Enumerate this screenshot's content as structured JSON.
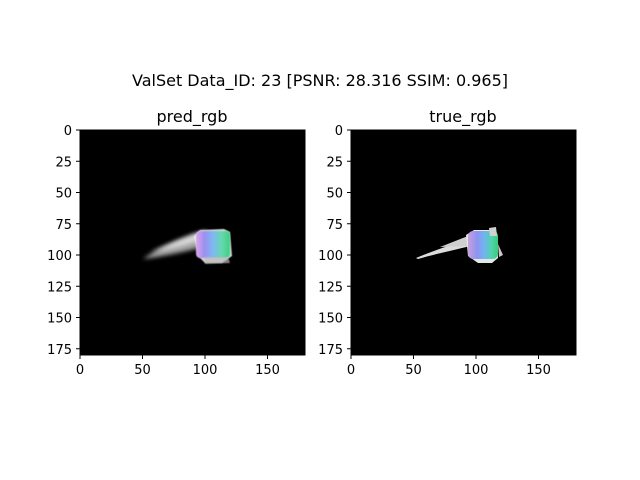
{
  "figure": {
    "suptitle": "ValSet  Data_ID: 23 [PSNR: 28.316 SSIM: 0.965]"
  },
  "colors": {
    "background": "#000000",
    "frame": "#000000",
    "figure_bg": "#ffffff"
  },
  "chart_data": [
    {
      "type": "image",
      "title": "pred_rgb",
      "xlim": [
        0,
        180
      ],
      "ylim": [
        180,
        0
      ],
      "xticks": [
        0,
        50,
        100,
        150
      ],
      "yticks": [
        0,
        25,
        50,
        75,
        100,
        125,
        150,
        175
      ],
      "content": "predicted render: soft/blurry white body with rainbow-colored block"
    },
    {
      "type": "image",
      "title": "true_rgb",
      "xlim": [
        0,
        180
      ],
      "ylim": [
        180,
        0
      ],
      "xticks": [
        0,
        50,
        100,
        150
      ],
      "yticks": [
        0,
        25,
        50,
        75,
        100,
        125,
        150,
        175
      ],
      "content": "ground truth render: sharp light-grey body with rainbow-colored block"
    }
  ]
}
